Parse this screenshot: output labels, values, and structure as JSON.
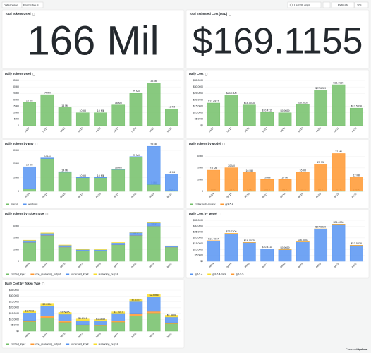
{
  "toolbar": {
    "datasource_label": "Datasource",
    "datasource": "Prometheus",
    "time_range": "Last 30 days",
    "refresh": "Refresh",
    "refresh_interval": "30s"
  },
  "stats": [
    {
      "title": "Total Tokens Used",
      "value": "166 Mil",
      "color": "#56a64b"
    },
    {
      "title": "Total Estimated Cost (USD)",
      "value": "$169.1155",
      "color": "#56a64b"
    }
  ],
  "chart_data": [
    {
      "type": "bar",
      "title": "Daily Tokens Used",
      "categories": [
        "04/14",
        "04/15",
        "04/16",
        "04/17",
        "04/18",
        "04/19",
        "04/20",
        "04/21",
        "04/22"
      ],
      "series": [
        {
          "name": "tokens",
          "color": "#73bf69",
          "values": [
            18,
            24,
            14,
            10,
            10,
            16,
            25,
            33,
            13
          ],
          "value_labels": [
            "18 Mil",
            "24 Mil",
            "14 Mil",
            "10 Mil",
            "10 Mil",
            "16 Mil",
            "25 Mil",
            "33 Mil",
            "13 Mil"
          ]
        }
      ],
      "ylim": [
        0,
        35
      ],
      "yticks": [
        0,
        {
          "value": 5,
          "label": "5 Mil"
        },
        {
          "value": 10,
          "label": "10 Mil"
        },
        {
          "value": 15,
          "label": "15 Mil"
        },
        {
          "value": 20,
          "label": "20 Mil"
        },
        {
          "value": 25,
          "label": "25 Mil"
        },
        {
          "value": 30,
          "label": "30 Mil"
        },
        {
          "value": 35,
          "label": "35 Mil"
        }
      ],
      "legend": false
    },
    {
      "type": "bar",
      "title": "Daily Cost",
      "categories": [
        "04/14",
        "04/15",
        "04/16",
        "04/17",
        "04/18",
        "04/19",
        "04/20",
        "04/21",
        "04/22"
      ],
      "series": [
        {
          "name": "cost",
          "color": "#73bf69",
          "values": [
            17.4977,
            23.7306,
            16.0075,
            10.4111,
            9.9659,
            16.5057,
            27.6229,
            31.6986,
            13.5838
          ],
          "value_labels": [
            "$17.4977",
            "$23.7306",
            "$16.0075",
            "$10.4111",
            "$9.9659",
            "$16.5057",
            "$27.6229",
            "$31.6986",
            "$13.5838"
          ]
        }
      ],
      "ylim": [
        0,
        35
      ],
      "yticks": [
        {
          "value": 0,
          "label": "$0"
        },
        {
          "value": 5,
          "label": "$5.0000"
        },
        {
          "value": 10,
          "label": "$10.0000"
        },
        {
          "value": 15,
          "label": "$15.0000"
        },
        {
          "value": 20,
          "label": "$20.0000"
        },
        {
          "value": 25,
          "label": "$25.0000"
        },
        {
          "value": 30,
          "label": "$30.0000"
        },
        {
          "value": 35,
          "label": "$35.0000"
        }
      ],
      "legend": false
    },
    {
      "type": "bar",
      "title": "Daily Tokens by Env",
      "categories": [
        "04/14",
        "04/15",
        "04/16",
        "04/17",
        "04/18",
        "04/19",
        "04/20",
        "04/21",
        "04/22"
      ],
      "series": [
        {
          "name": "macos",
          "color": "#73bf69",
          "values": [
            2,
            24,
            14,
            10,
            10,
            16,
            25,
            5,
            0.576
          ],
          "value_labels": [
            null,
            "24 Mil",
            "14 Mil",
            "10 Mil",
            "10 Mil",
            "16 Mil",
            "25 Mil",
            "5 Mil",
            "576 K"
          ]
        },
        {
          "name": "windows",
          "color": "#5794f2",
          "values": [
            16,
            0.5,
            0.4,
            0.3,
            0.3,
            0.4,
            0.5,
            28,
            12
          ],
          "value_labels": [
            "16 Mil",
            null,
            null,
            null,
            null,
            null,
            null,
            "28 Mil",
            "12 Mil"
          ]
        }
      ],
      "ylim": [
        0,
        30
      ],
      "yticks": [
        0,
        {
          "value": 10,
          "label": "10 Mil"
        },
        {
          "value": 20,
          "label": "20 Mil"
        },
        {
          "value": 30,
          "label": "30 Mil"
        }
      ],
      "legend": true
    },
    {
      "type": "bar",
      "title": "Daily Tokens by Model",
      "categories": [
        "04/14",
        "04/15",
        "04/16",
        "04/17",
        "04/18",
        "04/19",
        "04/20",
        "04/21",
        "04/22"
      ],
      "series": [
        {
          "name": "codex-auto-review",
          "color": "#73bf69",
          "values": [
            0.06,
            0.159,
            0.075,
            0.103,
            0.089,
            0.232,
            0.088,
            0.307,
            0.148
          ],
          "value_labels": [
            "60 K",
            "159 K",
            "75 K",
            "103 K",
            "89 K",
            "232 K",
            "88 K",
            "307 K",
            "148 K"
          ]
        },
        {
          "name": "gpt-5.4",
          "color": "#ff9830",
          "values": [
            18,
            20,
            16,
            10,
            10,
            16,
            23,
            32,
            12
          ],
          "value_labels": [
            "18 Mil",
            "20 Mil",
            "16 Mil",
            "10 Mil",
            "10 Mil",
            "16 Mil",
            "23 Mil",
            "32 Mil",
            "12 Mil"
          ]
        }
      ],
      "ylim": [
        0,
        35
      ],
      "yticks": [
        0,
        {
          "value": 10,
          "label": "10 Mil"
        },
        {
          "value": 20,
          "label": "20 Mil"
        },
        {
          "value": 30,
          "label": "30 Mil"
        }
      ],
      "legend": true
    },
    {
      "type": "bar",
      "title": "Daily Tokens by Token Type",
      "categories": [
        "04/14",
        "04/15",
        "04/16",
        "04/17",
        "04/18",
        "04/19",
        "04/20",
        "04/21",
        "04/22"
      ],
      "series": [
        {
          "name": "cached_input",
          "color": "#73bf69",
          "values": [
            16,
            22,
            12,
            9,
            9,
            14,
            22,
            30,
            12
          ]
        },
        {
          "name": "non_reasoning_output",
          "color": "#ff9830",
          "values": [
            0.1,
            0.15,
            0.1,
            0.08,
            0.07,
            0.1,
            0.093,
            0.097,
            0.08
          ],
          "value_labels": [
            null,
            null,
            null,
            null,
            null,
            null,
            "93 K",
            "97 K",
            null
          ]
        },
        {
          "name": "uncached_input",
          "color": "#5794f2",
          "values": [
            1.7,
            1.8,
            1.6,
            0.9,
            0.8,
            1.7,
            2.5,
            2.8,
            1.0
          ]
        },
        {
          "name": "reasoning_output",
          "color": "#fade2a",
          "values": [
            0.2,
            0.3,
            0.2,
            0.1,
            0.1,
            0.2,
            0.3,
            0.3,
            0.1
          ]
        }
      ],
      "ylim": [
        0,
        35
      ],
      "yticks": [
        0,
        {
          "value": 10,
          "label": "10 Mil"
        },
        {
          "value": 20,
          "label": "20 Mil"
        },
        {
          "value": 30,
          "label": "30 Mil"
        }
      ],
      "legend": true
    },
    {
      "type": "bar",
      "title": "Daily Cost by Model",
      "categories": [
        "04/14",
        "04/15",
        "04/16",
        "04/17",
        "04/18",
        "04/19",
        "04/20",
        "04/21",
        "04/22"
      ],
      "series": [
        {
          "name": "gpt-5.4",
          "color": "#5794f2",
          "values": [
            17.4977,
            23.7306,
            16.0075,
            10.4111,
            9.9659,
            16.5057,
            27.6229,
            31.6986,
            13.5838
          ],
          "value_labels": [
            "$17.4977",
            "$23.7306",
            "$16.0075",
            "$10.4111",
            "$9.9659",
            "$16.5057",
            "$27.6229",
            "$31.6986",
            "$13.5838"
          ]
        },
        {
          "name": "gpt-5.4-mini",
          "color": "#fade2a",
          "values": [
            0.05,
            0.06,
            0.04,
            0.03,
            0.03,
            0.05,
            0.06,
            0.07,
            0.04
          ]
        },
        {
          "name": "gpt-5.5",
          "color": "#ff9830",
          "values": [
            0.02,
            0.03,
            0.02,
            0.01,
            0.01,
            0.02,
            0.03,
            0.03,
            0.02
          ]
        }
      ],
      "ylim": [
        0,
        35
      ],
      "yticks": [
        {
          "value": 0,
          "label": "$0"
        },
        {
          "value": 5,
          "label": "$5.0000"
        },
        {
          "value": 10,
          "label": "$10.0000"
        },
        {
          "value": 15,
          "label": "$15.0000"
        },
        {
          "value": 20,
          "label": "$20.0000"
        },
        {
          "value": 25,
          "label": "$25.0000"
        },
        {
          "value": 30,
          "label": "$30.0000"
        },
        {
          "value": 35,
          "label": "$35.0000"
        }
      ],
      "legend": true
    },
    {
      "type": "bar",
      "title": "Daily Cost by Token Type",
      "categories": [
        "04/14",
        "04/15",
        "04/16",
        "04/17",
        "04/18",
        "04/19",
        "04/20",
        "04/21",
        "04/22"
      ],
      "series": [
        {
          "name": "cached_input",
          "color": "#73bf69",
          "values": [
            8.2,
            11.5,
            7.6,
            4.9,
            4.7,
            7.8,
            13.1,
            15.0,
            6.4
          ]
        },
        {
          "name": "non_reasoning_output",
          "color": "#ff9830",
          "values": [
            1.0,
            1.4,
            1.0,
            0.6,
            0.6,
            1.0,
            1.6,
            1.9,
            0.8
          ]
        },
        {
          "name": "uncached_input",
          "color": "#5794f2",
          "values": [
            6.5,
            8.6,
            5.9,
            3.7,
            3.5,
            6.0,
            10.6,
            12.3,
            4.9
          ]
        },
        {
          "name": "reasoning_output",
          "color": "#fade2a",
          "values": [
            1.7908,
            2.2306,
            1.5075,
            1.2111,
            1.1659,
            1.7057,
            2.3229,
            2.4986,
            1.4838
          ],
          "value_labels": [
            "$1.7908",
            "$2.2306",
            "$1.5075",
            "$1.2111",
            "$1.1659",
            "$1.7057",
            "$2.3229",
            "$2.4986",
            "$1.4838"
          ]
        }
      ],
      "ylim": [
        0,
        35
      ],
      "yticks": [
        {
          "value": 0,
          "label": "$0"
        },
        {
          "value": 5,
          "label": "$5.0000"
        },
        {
          "value": 10,
          "label": "$10.0000"
        },
        {
          "value": 15,
          "label": "$15.0000"
        },
        {
          "value": 20,
          "label": "$20.0000"
        },
        {
          "value": 25,
          "label": "$25.0000"
        },
        {
          "value": 30,
          "label": "$30.0000"
        },
        {
          "value": 35,
          "label": "$35.0000"
        }
      ],
      "legend": true
    }
  ],
  "footer": {
    "prefix": "Powered by",
    "brand": "Grafana"
  }
}
